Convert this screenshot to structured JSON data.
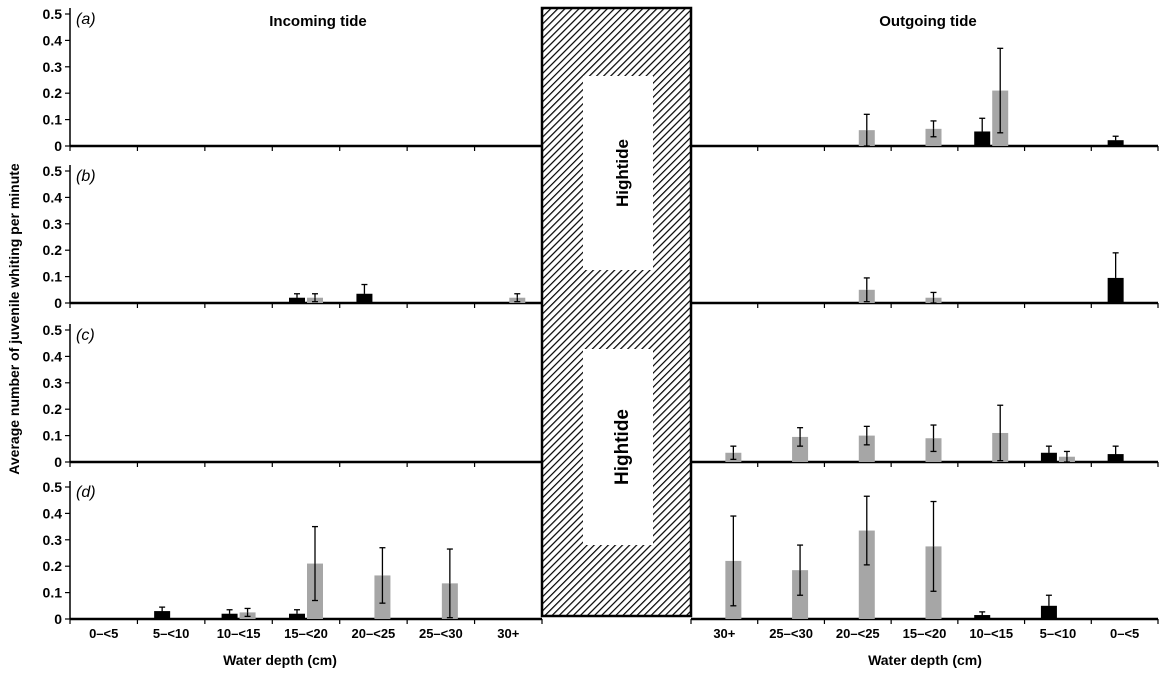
{
  "chart_data": {
    "type": "bar",
    "ylabel": "Average number of juvenile whiting per minute",
    "xlabel": "Water depth (cm)",
    "ylim": [
      0,
      0.5
    ],
    "yticks": [
      "0",
      "0.1",
      "0.2",
      "0.3",
      "0.4",
      "0.5"
    ],
    "incoming": {
      "title": "Incoming tide",
      "categories": [
        "0–<5",
        "5–<10",
        "10–<15",
        "15–<20",
        "20–<25",
        "25–<30",
        "30+"
      ]
    },
    "outgoing": {
      "title": "Outgoing tide",
      "categories": [
        "30+",
        "25–<30",
        "20–<25",
        "15–<20",
        "10–<15",
        "5–<10",
        "0–<5"
      ]
    },
    "hightide_label": "Hightide",
    "series_colors": {
      "black": "#000000",
      "grey": "#a6a6a6"
    },
    "panels": [
      {
        "label": "(a)",
        "incoming": {
          "black": [
            null,
            null,
            null,
            null,
            null,
            null,
            null
          ],
          "grey": [
            null,
            null,
            null,
            null,
            null,
            null,
            null
          ]
        },
        "outgoing": {
          "black": [
            null,
            null,
            null,
            null,
            0.055,
            null,
            0.022
          ],
          "grey": [
            null,
            null,
            0.06,
            0.065,
            0.21,
            null,
            null
          ]
        },
        "outgoing_err": {
          "black": [
            null,
            null,
            null,
            null,
            0.05,
            null,
            0.015
          ],
          "grey": [
            null,
            null,
            0.06,
            0.03,
            0.16,
            null,
            null
          ]
        },
        "incoming_err": {
          "black": [
            null,
            null,
            null,
            null,
            null,
            null,
            null
          ],
          "grey": [
            null,
            null,
            null,
            null,
            null,
            null,
            null
          ]
        }
      },
      {
        "label": "(b)",
        "incoming": {
          "black": [
            null,
            null,
            null,
            0.02,
            0.035,
            null,
            null
          ],
          "grey": [
            null,
            null,
            null,
            0.02,
            null,
            null,
            0.02
          ]
        },
        "incoming_err": {
          "black": [
            null,
            null,
            null,
            0.015,
            0.035,
            null,
            null
          ],
          "grey": [
            null,
            null,
            null,
            0.015,
            null,
            null,
            0.015
          ]
        },
        "outgoing": {
          "black": [
            null,
            null,
            null,
            null,
            null,
            null,
            0.095
          ],
          "grey": [
            null,
            null,
            0.05,
            0.02,
            null,
            null,
            null
          ]
        },
        "outgoing_err": {
          "black": [
            null,
            null,
            null,
            null,
            null,
            null,
            0.095
          ],
          "grey": [
            null,
            null,
            0.045,
            0.02,
            null,
            null,
            null
          ]
        }
      },
      {
        "label": "(c)",
        "incoming": {
          "black": [
            null,
            null,
            null,
            null,
            null,
            null,
            null
          ],
          "grey": [
            null,
            null,
            null,
            null,
            null,
            null,
            null
          ]
        },
        "incoming_err": {
          "black": [
            null,
            null,
            null,
            null,
            null,
            null,
            null
          ],
          "grey": [
            null,
            null,
            null,
            null,
            null,
            null,
            null
          ]
        },
        "outgoing": {
          "black": [
            null,
            null,
            null,
            null,
            null,
            0.035,
            0.03
          ],
          "grey": [
            0.035,
            0.095,
            0.1,
            0.09,
            0.11,
            0.02,
            null
          ]
        },
        "outgoing_err": {
          "black": [
            null,
            null,
            null,
            null,
            null,
            0.025,
            0.03
          ],
          "grey": [
            0.025,
            0.035,
            0.035,
            0.05,
            0.105,
            0.02,
            null
          ]
        }
      },
      {
        "label": "(d)",
        "incoming": {
          "black": [
            null,
            0.03,
            0.02,
            0.02,
            null,
            null,
            null
          ],
          "grey": [
            null,
            null,
            0.025,
            0.21,
            0.165,
            0.135,
            null
          ]
        },
        "incoming_err": {
          "black": [
            null,
            0.015,
            0.015,
            0.015,
            null,
            null,
            null
          ],
          "grey": [
            null,
            null,
            0.015,
            0.14,
            0.105,
            0.13,
            null
          ]
        },
        "outgoing": {
          "black": [
            null,
            null,
            null,
            null,
            0.015,
            0.05,
            null
          ],
          "grey": [
            0.22,
            0.185,
            0.335,
            0.275,
            null,
            null,
            null
          ]
        },
        "outgoing_err": {
          "black": [
            null,
            null,
            null,
            null,
            0.012,
            0.04,
            null
          ],
          "grey": [
            0.17,
            0.095,
            0.13,
            0.17,
            null,
            null,
            null
          ]
        }
      }
    ]
  }
}
